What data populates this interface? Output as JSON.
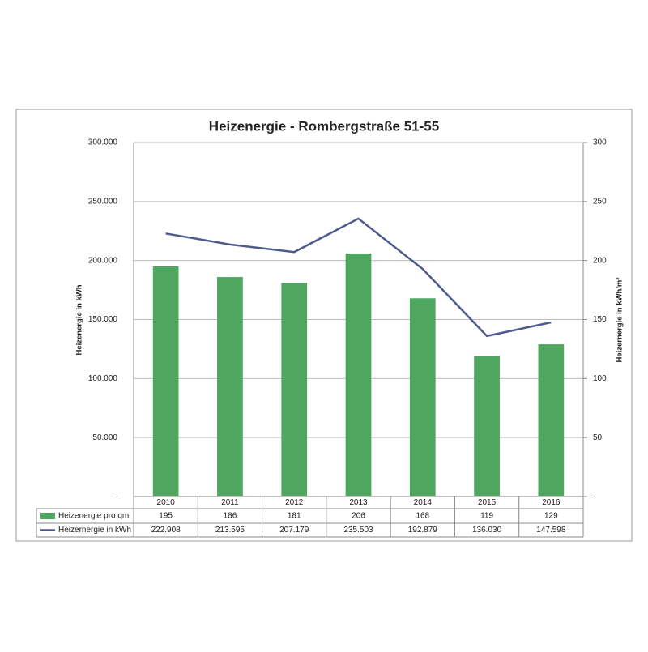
{
  "chart_data": {
    "type": "combo",
    "title": "Heizenergie - Rombergstraße 51-55",
    "categories": [
      "2010",
      "2011",
      "2012",
      "2013",
      "2014",
      "2015",
      "2016"
    ],
    "series": [
      {
        "name": "Heizenergie pro qm",
        "type": "bar",
        "axis": "y2",
        "color": "#4ea65f",
        "values": [
          195,
          186,
          181,
          206,
          168,
          119,
          129
        ]
      },
      {
        "name": "Heizernergie in kWh",
        "type": "line",
        "axis": "y",
        "color": "#4e5a8e",
        "values": [
          222908,
          213595,
          207179,
          235503,
          192879,
          136030,
          147598
        ],
        "value_labels": [
          "222.908",
          "213.595",
          "207.179",
          "235.503",
          "192.879",
          "136.030",
          "147.598"
        ]
      }
    ],
    "ylabel": "Heizenergie in kWh",
    "y2label": "Heizernergie in kWh/m²",
    "ylim": [
      0,
      300000
    ],
    "yticks": [
      {
        "value": 0,
        "label": "-"
      },
      {
        "value": 50000,
        "label": "50.000"
      },
      {
        "value": 100000,
        "label": "100.000"
      },
      {
        "value": 150000,
        "label": "150.000"
      },
      {
        "value": 200000,
        "label": "200.000"
      },
      {
        "value": 250000,
        "label": "250.000"
      },
      {
        "value": 300000,
        "label": "300.000"
      }
    ],
    "y2lim": [
      0,
      300
    ],
    "y2ticks": [
      {
        "value": 0,
        "label": "-"
      },
      50,
      100,
      150,
      200,
      250,
      300
    ],
    "grid": true
  }
}
